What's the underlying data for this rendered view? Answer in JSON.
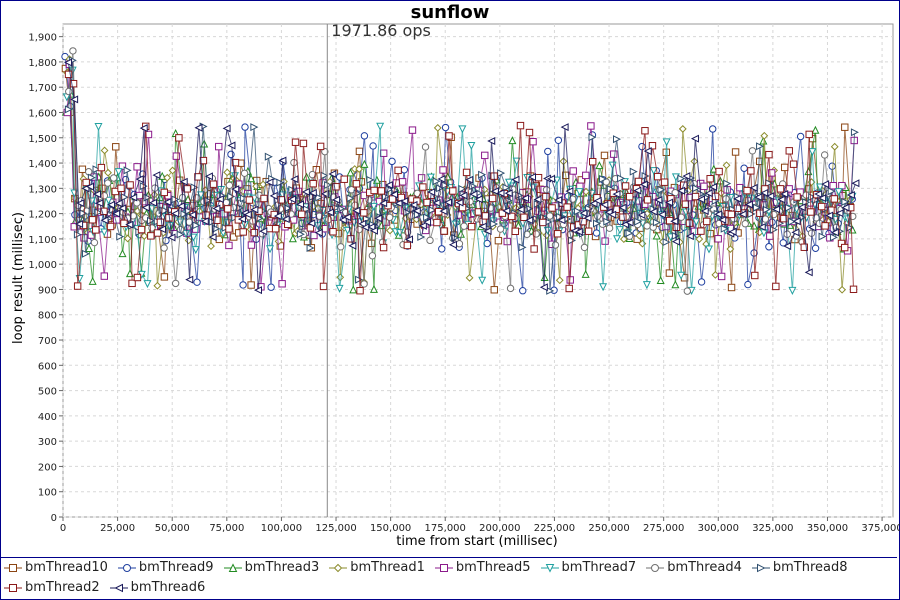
{
  "chart_data": {
    "type": "scatter",
    "title": "sunflow",
    "annotation": "1971.86 ops",
    "annotation_x": 121000,
    "xlabel": "time from start (millisec)",
    "ylabel": "loop result (millisec)",
    "xlim": [
      0,
      380000
    ],
    "ylim": [
      0,
      1950
    ],
    "x_ticks": [
      0,
      25000,
      50000,
      75000,
      100000,
      125000,
      150000,
      175000,
      200000,
      225000,
      250000,
      275000,
      300000,
      325000,
      350000,
      375000
    ],
    "x_tick_labels": [
      "0",
      "25,000",
      "50,000",
      "75,000",
      "100,000",
      "125,000",
      "150,000",
      "175,000",
      "200,000",
      "225,000",
      "250,000",
      "275,000",
      "300,000",
      "325,000",
      "350,000",
      "375,000"
    ],
    "y_ticks": [
      0,
      100,
      200,
      300,
      400,
      500,
      600,
      700,
      800,
      900,
      1000,
      1100,
      1200,
      1300,
      1400,
      1500,
      1600,
      1700,
      1800,
      1900
    ],
    "y_tick_labels": [
      "0",
      "100",
      "200",
      "300",
      "400",
      "500",
      "600",
      "700",
      "800",
      "900",
      "1,000",
      "1,100",
      "1,200",
      "1,300",
      "1,400",
      "1,500",
      "1,600",
      "1,700",
      "1,800",
      "1,900"
    ],
    "grid": true,
    "legend_position": "bottom",
    "series_summary": {
      "x_range": [
        0,
        362000
      ],
      "typical_range": [
        1000,
        1450
      ],
      "center": 1210,
      "initial_spike": 1850
    },
    "series": [
      {
        "name": "bmThread10",
        "color": "#8b4513",
        "marker": "square"
      },
      {
        "name": "bmThread9",
        "color": "#1f3f9f",
        "marker": "circle"
      },
      {
        "name": "bmThread3",
        "color": "#228b22",
        "marker": "triangle-up"
      },
      {
        "name": "bmThread1",
        "color": "#8b8b2b",
        "marker": "diamond"
      },
      {
        "name": "bmThread5",
        "color": "#8b1a8b",
        "marker": "square"
      },
      {
        "name": "bmThread7",
        "color": "#20a0a0",
        "marker": "triangle-down"
      },
      {
        "name": "bmThread4",
        "color": "#707070",
        "marker": "circle"
      },
      {
        "name": "bmThread8",
        "color": "#2f4f6f",
        "marker": "triangle-right"
      },
      {
        "name": "bmThread2",
        "color": "#8b1a1a",
        "marker": "square"
      },
      {
        "name": "bmThread6",
        "color": "#1a1a5a",
        "marker": "triangle-left"
      }
    ]
  }
}
